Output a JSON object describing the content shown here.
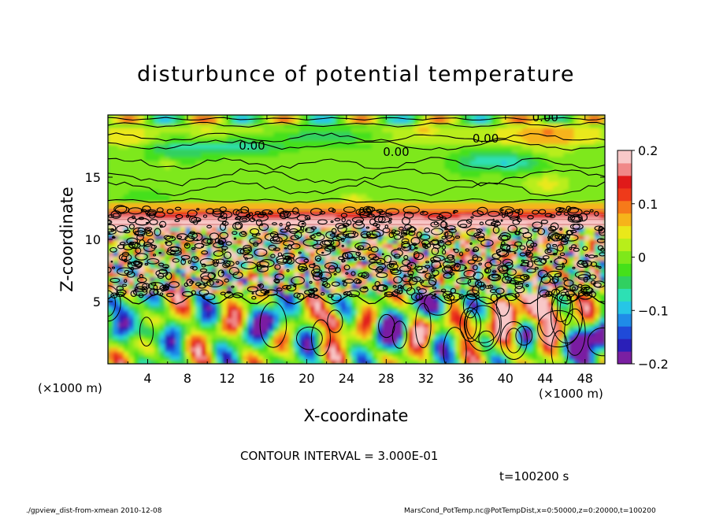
{
  "chart_data": {
    "type": "heatmap",
    "title": "disturbunce of potential temperature",
    "xlabel": "X-coordinate",
    "ylabel": "Z-coordinate",
    "x_unit": "(×1000 m)",
    "y_unit": "(×1000 m)",
    "xlim": [
      0,
      50
    ],
    "ylim": [
      0,
      20
    ],
    "x_ticks": [
      4,
      8,
      12,
      16,
      20,
      24,
      28,
      32,
      36,
      40,
      44,
      48
    ],
    "y_ticks": [
      5,
      10,
      15
    ],
    "colorbar": {
      "range": [
        -0.2,
        0.2
      ],
      "ticks": [
        "0.2",
        "0.1",
        "0",
        "−0.1",
        "−0.2"
      ],
      "tick_values": [
        0.2,
        0.1,
        0,
        -0.1,
        -0.2
      ],
      "colors": [
        "#7a1fa2",
        "#2a1fb8",
        "#1f4ad8",
        "#1f8ce8",
        "#26c6e6",
        "#2de0b4",
        "#30d060",
        "#45e01a",
        "#7ee81a",
        "#b8ee1a",
        "#eae81a",
        "#f6b41a",
        "#f67a1a",
        "#ee3a1a",
        "#e01a1a",
        "#f08888",
        "#f8c8c8"
      ]
    },
    "contour_interval_text": "CONTOUR INTERVAL = 3.000E-01",
    "contour_labels": [
      "0.00",
      "0.00",
      "0.00",
      "0.00"
    ],
    "time_text": "t=100200 s"
  },
  "footer": {
    "left": "./gpview_dist-from-xmean   2010-12-08",
    "right": "MarsCond_PotTemp.nc@PotTempDist,x=0:50000,z=0:20000,t=100200"
  }
}
